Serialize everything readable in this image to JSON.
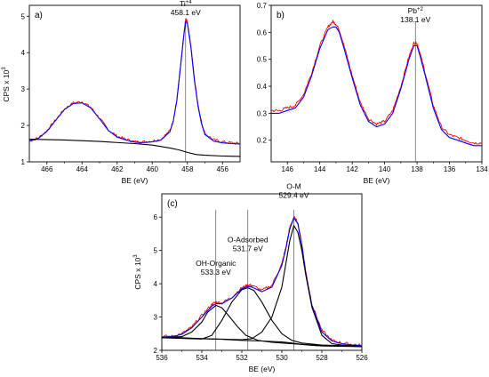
{
  "chart_data": [
    {
      "type": "line",
      "panel_label": "a)",
      "xlabel": "BE (eV)",
      "ylabel": "CPS x 10",
      "ylabel_exp": "3",
      "xlim": [
        467,
        455
      ],
      "ylim": [
        1,
        5.3
      ],
      "x_reversed": true,
      "xticks": [
        466,
        464,
        462,
        460,
        458,
        456
      ],
      "yticks": [
        1,
        2,
        3,
        4,
        5
      ],
      "grid": false,
      "series": [
        {
          "role": "raw",
          "color": "#ff0000",
          "x": [
            467,
            466.5,
            466,
            465.5,
            465,
            464.5,
            464,
            463.5,
            463,
            462.5,
            462,
            461.5,
            461,
            460.5,
            460,
            459.5,
            459,
            458.8,
            458.6,
            458.4,
            458.2,
            458.1,
            458,
            457.8,
            457.6,
            457.4,
            457.2,
            457,
            456.5,
            456,
            455.5,
            455
          ],
          "y": [
            1.58,
            1.65,
            1.85,
            2.15,
            2.45,
            2.62,
            2.65,
            2.5,
            2.2,
            1.88,
            1.7,
            1.62,
            1.55,
            1.55,
            1.57,
            1.62,
            1.85,
            2.15,
            2.7,
            3.6,
            4.5,
            4.92,
            4.85,
            4.2,
            3.3,
            2.6,
            2.1,
            1.78,
            1.6,
            1.55,
            1.52,
            1.5
          ]
        },
        {
          "role": "fit",
          "color": "#0000ff",
          "x": [
            467,
            466.5,
            466,
            465.5,
            465,
            464.5,
            464,
            463.5,
            463,
            462.5,
            462,
            461.5,
            461,
            460.5,
            460,
            459.5,
            459,
            458.8,
            458.6,
            458.4,
            458.2,
            458.1,
            458,
            457.8,
            457.6,
            457.4,
            457.2,
            457,
            456.5,
            456,
            455.5,
            455
          ],
          "y": [
            1.57,
            1.64,
            1.84,
            2.14,
            2.44,
            2.6,
            2.62,
            2.48,
            2.18,
            1.86,
            1.68,
            1.6,
            1.54,
            1.53,
            1.55,
            1.6,
            1.82,
            2.12,
            2.68,
            3.58,
            4.48,
            4.85,
            4.8,
            4.15,
            3.25,
            2.55,
            2.05,
            1.75,
            1.57,
            1.52,
            1.5,
            1.49
          ]
        },
        {
          "role": "background",
          "color": "#000000",
          "x": [
            467,
            465,
            463,
            461,
            460,
            459,
            458.5,
            458,
            457.5,
            457,
            456,
            455
          ],
          "y": [
            1.62,
            1.6,
            1.56,
            1.5,
            1.46,
            1.38,
            1.33,
            1.26,
            1.2,
            1.18,
            1.16,
            1.15
          ]
        }
      ],
      "vlines": [
        458.1
      ],
      "annotations": [
        {
          "text": "Ti",
          "sup": "+4",
          "line2": "458.1 eV",
          "x": 458.1,
          "y": 5.05
        }
      ]
    },
    {
      "type": "line",
      "panel_label": "b)",
      "xlabel": "BE (eV)",
      "ylabel": "",
      "xlim": [
        147,
        134
      ],
      "ylim": [
        0.12,
        0.7
      ],
      "x_reversed": true,
      "xticks": [
        146,
        144,
        142,
        140,
        138,
        136,
        134
      ],
      "yticks": [
        0.2,
        0.3,
        0.4,
        0.5,
        0.6,
        0.7
      ],
      "grid": false,
      "series": [
        {
          "role": "raw",
          "color": "#ff0000",
          "x": [
            147,
            146.5,
            146,
            145.5,
            145,
            144.5,
            144,
            143.5,
            143.2,
            143,
            142.8,
            142.5,
            142,
            141.5,
            141,
            140.5,
            140,
            139.5,
            139,
            138.5,
            138.2,
            138,
            137.8,
            137.5,
            137,
            136.5,
            136,
            135.5,
            135,
            134.5,
            134
          ],
          "y": [
            0.31,
            0.31,
            0.32,
            0.33,
            0.37,
            0.45,
            0.55,
            0.62,
            0.64,
            0.63,
            0.61,
            0.55,
            0.44,
            0.34,
            0.28,
            0.26,
            0.27,
            0.31,
            0.4,
            0.51,
            0.56,
            0.56,
            0.52,
            0.45,
            0.33,
            0.25,
            0.22,
            0.21,
            0.2,
            0.19,
            0.19
          ]
        },
        {
          "role": "fit",
          "color": "#0000ff",
          "x": [
            147,
            146.5,
            146,
            145.5,
            145,
            144.5,
            144,
            143.5,
            143.2,
            143,
            142.8,
            142.5,
            142,
            141.5,
            141,
            140.5,
            140,
            139.5,
            139,
            138.5,
            138.2,
            138,
            137.8,
            137.5,
            137,
            136.5,
            136,
            135.5,
            135,
            134.5,
            134
          ],
          "y": [
            0.3,
            0.3,
            0.31,
            0.32,
            0.36,
            0.44,
            0.54,
            0.61,
            0.62,
            0.62,
            0.6,
            0.54,
            0.43,
            0.33,
            0.27,
            0.25,
            0.26,
            0.3,
            0.39,
            0.5,
            0.55,
            0.55,
            0.51,
            0.44,
            0.32,
            0.24,
            0.21,
            0.2,
            0.19,
            0.18,
            0.18
          ]
        }
      ],
      "vlines": [
        138.1
      ],
      "annotations": [
        {
          "text": "Pb",
          "sup": "+2",
          "line2": "138.1 eV",
          "x": 138.1,
          "y": 0.64
        }
      ]
    },
    {
      "type": "line",
      "panel_label": "(c)",
      "xlabel": "BE (eV)",
      "ylabel": "CPS x 10",
      "ylabel_exp": "3",
      "xlim": [
        536,
        526
      ],
      "ylim": [
        2,
        6.7
      ],
      "x_reversed": true,
      "xticks": [
        536,
        534,
        532,
        530,
        528,
        526
      ],
      "yticks": [
        2,
        3,
        4,
        5,
        6
      ],
      "grid": false,
      "series": [
        {
          "role": "raw",
          "color": "#ff0000",
          "x": [
            536,
            535.5,
            535,
            534.5,
            534,
            533.5,
            533.3,
            533,
            532.5,
            532,
            531.7,
            531.5,
            531,
            530.5,
            530,
            529.8,
            529.6,
            529.4,
            529.2,
            529,
            528.8,
            528.5,
            528,
            527.5,
            527,
            526.5,
            526
          ],
          "y": [
            2.42,
            2.42,
            2.5,
            2.7,
            3.05,
            3.38,
            3.45,
            3.42,
            3.6,
            3.88,
            3.96,
            3.95,
            3.8,
            3.95,
            4.6,
            5.1,
            5.7,
            6.0,
            5.85,
            5.2,
            4.35,
            3.4,
            2.6,
            2.3,
            2.22,
            2.18,
            2.15
          ]
        },
        {
          "role": "fit",
          "color": "#0000ff",
          "x": [
            536,
            535.5,
            535,
            534.5,
            534,
            533.5,
            533.3,
            533,
            532.5,
            532,
            531.7,
            531.5,
            531,
            530.5,
            530,
            529.8,
            529.6,
            529.4,
            529.2,
            529,
            528.8,
            528.5,
            528,
            527.5,
            527,
            526.5,
            526
          ],
          "y": [
            2.4,
            2.41,
            2.48,
            2.68,
            3.0,
            3.33,
            3.4,
            3.4,
            3.57,
            3.85,
            3.92,
            3.9,
            3.76,
            3.9,
            4.55,
            5.05,
            5.65,
            5.98,
            5.8,
            5.15,
            4.3,
            3.35,
            2.55,
            2.28,
            2.2,
            2.16,
            2.14
          ]
        },
        {
          "role": "component",
          "color": "#000000",
          "x": [
            536,
            535,
            534.5,
            534,
            533.7,
            533.3,
            533,
            532.6,
            532.2,
            531.8,
            531.2,
            530.5,
            530,
            529,
            528,
            526
          ],
          "y": [
            2.38,
            2.41,
            2.55,
            2.85,
            3.15,
            3.35,
            3.28,
            3.0,
            2.7,
            2.45,
            2.3,
            2.24,
            2.22,
            2.18,
            2.15,
            2.12
          ]
        },
        {
          "role": "component",
          "color": "#000000",
          "x": [
            536,
            534,
            533.5,
            533,
            532.5,
            532,
            531.7,
            531.4,
            531,
            530.5,
            530,
            529.5,
            529,
            528,
            526
          ],
          "y": [
            2.38,
            2.34,
            2.45,
            2.9,
            3.45,
            3.82,
            3.88,
            3.8,
            3.45,
            2.9,
            2.5,
            2.3,
            2.22,
            2.16,
            2.12
          ]
        },
        {
          "role": "component",
          "color": "#000000",
          "x": [
            536,
            532,
            531.5,
            531,
            530.5,
            530,
            529.8,
            529.6,
            529.4,
            529.2,
            529,
            528.8,
            528.5,
            528,
            527.5,
            527,
            526
          ],
          "y": [
            2.38,
            2.32,
            2.35,
            2.55,
            3.0,
            3.9,
            4.6,
            5.3,
            5.75,
            5.55,
            5.0,
            4.25,
            3.3,
            2.45,
            2.2,
            2.16,
            2.12
          ]
        },
        {
          "role": "background",
          "color": "#000000",
          "x": [
            536,
            535,
            534,
            533,
            532,
            531,
            530,
            529.5,
            529,
            528.5,
            528,
            527,
            526
          ],
          "y": [
            2.4,
            2.38,
            2.35,
            2.33,
            2.3,
            2.28,
            2.25,
            2.22,
            2.18,
            2.15,
            2.13,
            2.12,
            2.11
          ]
        }
      ],
      "vlines": [
        533.3,
        531.7,
        529.4
      ],
      "annotations": [
        {
          "text": "OH-Organic",
          "line2": "533.3 eV",
          "x": 533.3,
          "y": 4.3
        },
        {
          "text": "O-Adsorbed",
          "line2": "531.7 eV",
          "x": 531.7,
          "y": 5.0
        },
        {
          "text": "O-M",
          "line2": "529.4 eV",
          "x": 529.4,
          "y": 6.6
        }
      ]
    }
  ]
}
